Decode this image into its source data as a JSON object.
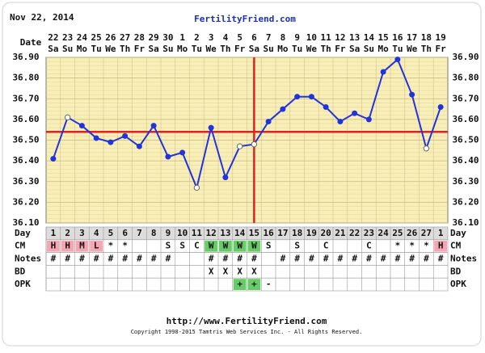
{
  "chart_data": {
    "type": "line",
    "header_date": "Nov 22, 2014",
    "title": "FertilityFriend.com",
    "date_label": "Date",
    "categories": [
      "22",
      "23",
      "24",
      "25",
      "26",
      "27",
      "28",
      "29",
      "30",
      "1",
      "2",
      "3",
      "4",
      "5",
      "6",
      "7",
      "8",
      "9",
      "10",
      "11",
      "12",
      "13",
      "14",
      "15",
      "16",
      "17",
      "18",
      "19"
    ],
    "weekdays": [
      "Sa",
      "Su",
      "Mo",
      "Tu",
      "We",
      "Th",
      "Fr",
      "Sa",
      "Su",
      "Mo",
      "Tu",
      "We",
      "Th",
      "Fr",
      "Sa",
      "Su",
      "Mo",
      "Tu",
      "We",
      "Th",
      "Fr",
      "Sa",
      "Su",
      "Mo",
      "Tu",
      "We",
      "Th",
      "Fr"
    ],
    "series": [
      {
        "color": "#2233dd",
        "values": [
          36.41,
          36.61,
          36.57,
          36.51,
          36.49,
          36.52,
          36.47,
          36.57,
          36.42,
          36.44,
          36.27,
          36.56,
          36.32,
          36.47,
          36.48,
          36.59,
          36.65,
          36.71,
          36.71,
          36.66,
          36.59,
          36.63,
          36.6,
          36.83,
          36.89,
          36.72,
          36.46,
          36.66
        ],
        "open": [
          false,
          true,
          false,
          false,
          false,
          false,
          false,
          false,
          false,
          false,
          true,
          false,
          false,
          true,
          true,
          false,
          false,
          false,
          false,
          false,
          false,
          false,
          false,
          false,
          false,
          false,
          true,
          false
        ]
      }
    ],
    "ylim": [
      36.1,
      36.9
    ],
    "yticks": [
      {
        "value": 36.1,
        "label": "36.10"
      },
      {
        "value": 36.2,
        "label": "36.20"
      },
      {
        "value": 36.3,
        "label": "36.30"
      },
      {
        "value": 36.4,
        "label": "36.40"
      },
      {
        "value": 36.5,
        "label": "36.50"
      },
      {
        "value": 36.6,
        "label": "36.60"
      },
      {
        "value": 36.7,
        "label": "36.70"
      },
      {
        "value": 36.8,
        "label": "36.80"
      },
      {
        "value": 36.9,
        "label": "36.90"
      }
    ],
    "grid": true,
    "coverline": 36.54,
    "ovulation_day": 15,
    "marker_line_color": "#dd2222",
    "rows": [
      {
        "label": "Day",
        "values": [
          "1",
          "2",
          "3",
          "4",
          "5",
          "6",
          "7",
          "8",
          "9",
          "10",
          "11",
          "12",
          "13",
          "14",
          "15",
          "16",
          "17",
          "18",
          "19",
          "20",
          "21",
          "22",
          "23",
          "24",
          "25",
          "26",
          "27",
          "1"
        ]
      },
      {
        "label": "CM",
        "values": [
          "H",
          "H",
          "M",
          "L",
          "*",
          "*",
          "",
          "",
          "S",
          "S",
          "C",
          "W",
          "W",
          "W",
          "W",
          "S",
          "",
          "S",
          "",
          "C",
          "",
          "",
          "C",
          "",
          "*",
          "*",
          "*",
          "H"
        ],
        "cell_colors": [
          "#f4a6b4",
          "#f4a6b4",
          "#f4a6b4",
          "#f4a6b4",
          null,
          null,
          null,
          null,
          null,
          null,
          null,
          "#66cc66",
          "#66cc66",
          "#66cc66",
          "#66cc66",
          null,
          null,
          null,
          null,
          null,
          null,
          null,
          null,
          null,
          null,
          null,
          null,
          "#f4a6b4"
        ]
      },
      {
        "label": "Notes",
        "values": [
          "#",
          "#",
          "#",
          "#",
          "#",
          "#",
          "#",
          "#",
          "#",
          "",
          "",
          "#",
          "#",
          "#",
          "#",
          "",
          "#",
          "#",
          "#",
          "#",
          "#",
          "#",
          "#",
          "#",
          "#",
          "#",
          "#",
          "#"
        ]
      },
      {
        "label": "BD",
        "values": [
          "",
          "",
          "",
          "",
          "",
          "",
          "",
          "",
          "",
          "",
          "",
          "X",
          "X",
          "X",
          "X",
          "",
          "",
          "",
          "",
          "",
          "",
          "",
          "",
          "",
          "",
          "",
          "",
          ""
        ]
      },
      {
        "label": "OPK",
        "values": [
          "",
          "",
          "",
          "",
          "",
          "",
          "",
          "",
          "",
          "",
          "",
          "",
          "",
          "+",
          "+",
          "-",
          "",
          "",
          "",
          "",
          "",
          "",
          "",
          "",
          "",
          "",
          "",
          ""
        ],
        "cell_colors": [
          null,
          null,
          null,
          null,
          null,
          null,
          null,
          null,
          null,
          null,
          null,
          null,
          null,
          "#66cc66",
          "#66cc66",
          null,
          null,
          null,
          null,
          null,
          null,
          null,
          null,
          null,
          null,
          null,
          null,
          null
        ]
      }
    ],
    "footer_url": "http://www.FertilityFriend.com",
    "copyright": "Copyright 1998-2015 Tamtris Web Services Inc. - All Rights Reserved."
  }
}
